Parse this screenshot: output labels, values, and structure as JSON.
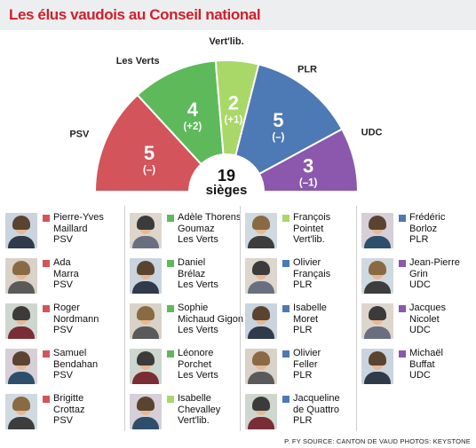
{
  "header": {
    "title": "Les élus vaudois au Conseil national"
  },
  "colors": {
    "PSV": "#d3545a",
    "Les Verts": "#5db95a",
    "Vert'lib.": "#a9d768",
    "PLR": "#4d79b4",
    "UDC": "#8b58ad"
  },
  "chart_data": {
    "type": "pie",
    "variant": "parliament-hemicycle",
    "total": {
      "value": "19",
      "label": "sièges"
    },
    "series": [
      {
        "name": "PSV",
        "seats": 5,
        "change": "(–)",
        "color": "#d3545a"
      },
      {
        "name": "Les Verts",
        "seats": 4,
        "change": "(+2)",
        "color": "#5db95a"
      },
      {
        "name": "Vert'lib.",
        "seats": 2,
        "change": "(+1)",
        "color": "#a9d768"
      },
      {
        "name": "PLR",
        "seats": 5,
        "change": "(–)",
        "color": "#4d79b4"
      },
      {
        "name": "UDC",
        "seats": 3,
        "change": "(–1)",
        "color": "#8b58ad"
      }
    ]
  },
  "columns": [
    [
      {
        "lines": [
          "Pierre-Yves",
          "Maillard",
          "PSV"
        ],
        "party": "PSV"
      },
      {
        "lines": [
          "Ada",
          "Marra",
          "PSV"
        ],
        "party": "PSV"
      },
      {
        "lines": [
          "Roger",
          "Nordmann",
          "PSV"
        ],
        "party": "PSV"
      },
      {
        "lines": [
          "Samuel",
          "Bendahan",
          "PSV"
        ],
        "party": "PSV"
      },
      {
        "lines": [
          "Brigitte",
          "Crottaz",
          "PSV"
        ],
        "party": "PSV"
      }
    ],
    [
      {
        "lines": [
          "Adèle Thorens",
          "Goumaz",
          "Les Verts"
        ],
        "party": "Les Verts"
      },
      {
        "lines": [
          "Daniel",
          "Brélaz",
          "Les Verts"
        ],
        "party": "Les Verts"
      },
      {
        "lines": [
          "Sophie",
          "Michaud Gigon",
          "Les Verts"
        ],
        "party": "Les Verts"
      },
      {
        "lines": [
          "Léonore",
          "Porchet",
          "Les Verts"
        ],
        "party": "Les Verts"
      },
      {
        "lines": [
          "Isabelle",
          "Chevalley",
          "Vert'lib."
        ],
        "party": "Vert'lib."
      }
    ],
    [
      {
        "lines": [
          "François",
          "Pointet",
          "Vert'lib."
        ],
        "party": "Vert'lib."
      },
      {
        "lines": [
          "Olivier",
          "Français",
          "PLR"
        ],
        "party": "PLR"
      },
      {
        "lines": [
          "Isabelle",
          "Moret",
          "PLR"
        ],
        "party": "PLR"
      },
      {
        "lines": [
          "Olivier",
          "Feller",
          "PLR"
        ],
        "party": "PLR"
      },
      {
        "lines": [
          "Jacqueline",
          "de Quattro",
          "PLR"
        ],
        "party": "PLR"
      }
    ],
    [
      {
        "lines": [
          "Frédéric",
          "Borloz",
          "PLR"
        ],
        "party": "PLR"
      },
      {
        "lines": [
          "Jean-Pierre",
          "Grin",
          "UDC"
        ],
        "party": "UDC"
      },
      {
        "lines": [
          "Jacques",
          "Nicolet",
          "UDC"
        ],
        "party": "UDC"
      },
      {
        "lines": [
          "Michaël",
          "Buffat",
          "UDC"
        ],
        "party": "UDC"
      }
    ]
  ],
  "footer": {
    "credit": "P. FY SOURCE: CANTON DE VAUD  PHOTOS: KEYSTONE"
  }
}
